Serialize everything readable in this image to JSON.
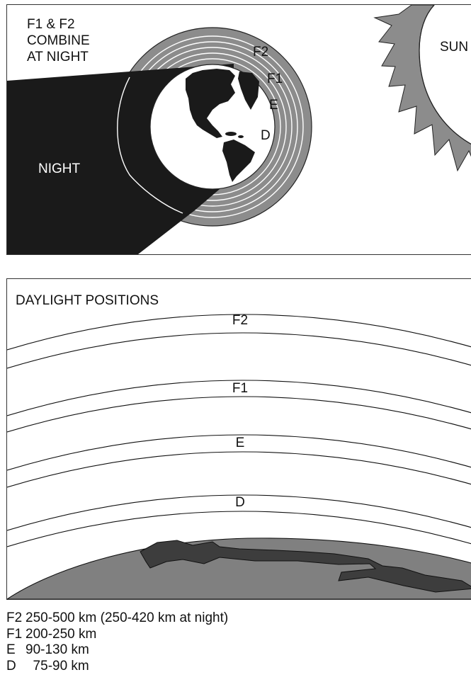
{
  "top_diagram": {
    "combine_note": [
      "F1 & F2",
      "COMBINE",
      "AT NIGHT"
    ],
    "night_label": "NIGHT",
    "sun_label": "SUN",
    "layer_labels": [
      "F2",
      "F1",
      "E",
      "D"
    ]
  },
  "bottom_diagram": {
    "title": "DAYLIGHT POSITIONS",
    "layer_labels": [
      "F2",
      "F1",
      "E",
      "D"
    ]
  },
  "legend": [
    {
      "layer": "F2",
      "range": "250-500 km (250-420 km at night)"
    },
    {
      "layer": "F1",
      "range": "200-250 km"
    },
    {
      "layer": "E",
      "range": "90-130 km"
    },
    {
      "layer": "D",
      "range": "  75-90 km"
    }
  ],
  "colors": {
    "layers": "#8c8c8c",
    "night": "#1a1a1a",
    "earth_surface": "#808080",
    "land_shadow": "#3d3d3d"
  }
}
